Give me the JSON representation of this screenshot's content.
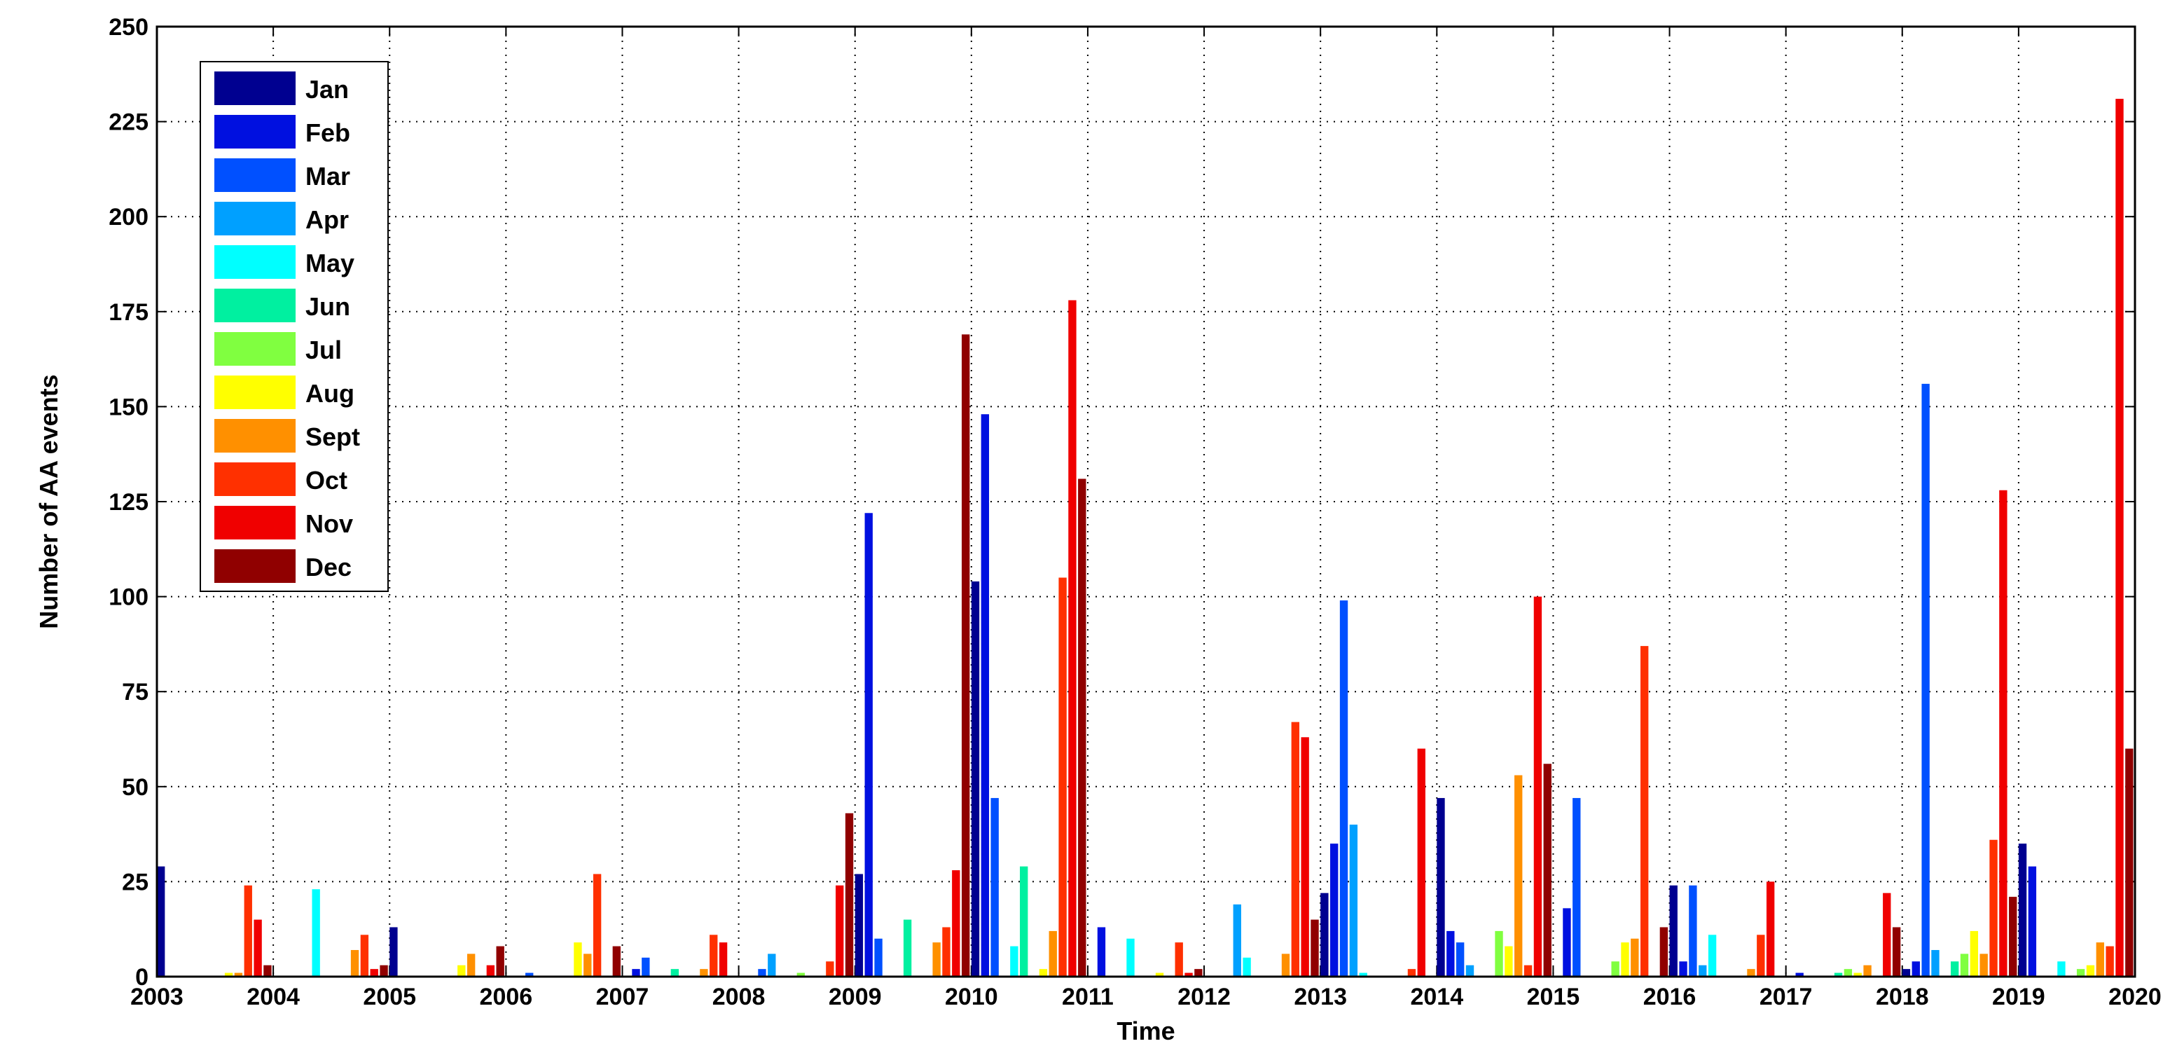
{
  "chart_data": {
    "type": "bar",
    "xlabel": "Time",
    "ylabel": "Number of AA events",
    "x": [
      2003,
      2004,
      2005,
      2006,
      2007,
      2008,
      2009,
      2010,
      2011,
      2012,
      2013,
      2014,
      2015,
      2016,
      2017,
      2018,
      2019
    ],
    "xlim": [
      2003,
      2020
    ],
    "xticks": [
      2003,
      2004,
      2005,
      2006,
      2007,
      2008,
      2009,
      2010,
      2011,
      2012,
      2013,
      2014,
      2015,
      2016,
      2017,
      2018,
      2019,
      2020
    ],
    "ylim": [
      0,
      250
    ],
    "yticks": [
      0,
      25,
      50,
      75,
      100,
      125,
      150,
      175,
      200,
      225,
      250
    ],
    "grid": true,
    "legend": "upper left",
    "series": [
      {
        "name": "Jan",
        "color": "#000090",
        "values": [
          29,
          0,
          13,
          0,
          0,
          0,
          27,
          104,
          0,
          0,
          22,
          47,
          0,
          24,
          0,
          2,
          35
        ]
      },
      {
        "name": "Feb",
        "color": "#0010e0",
        "values": [
          0,
          0,
          0,
          0,
          2,
          0,
          122,
          148,
          13,
          0,
          35,
          12,
          18,
          4,
          1,
          4,
          29
        ]
      },
      {
        "name": "Mar",
        "color": "#0050ff",
        "values": [
          0,
          0,
          0,
          1,
          5,
          2,
          10,
          47,
          0,
          0,
          99,
          9,
          47,
          24,
          0,
          156,
          0
        ]
      },
      {
        "name": "Apr",
        "color": "#00a0ff",
        "values": [
          0,
          0,
          0,
          0,
          0,
          6,
          0,
          0,
          0,
          19,
          40,
          3,
          0,
          3,
          0,
          7,
          0
        ]
      },
      {
        "name": "May",
        "color": "#00ffff",
        "values": [
          0,
          23,
          0,
          0,
          0,
          0,
          0,
          8,
          10,
          5,
          1,
          0,
          0,
          11,
          0,
          0,
          4
        ]
      },
      {
        "name": "Jun",
        "color": "#00f0a0",
        "values": [
          0,
          0,
          0,
          0,
          2,
          0,
          15,
          29,
          0,
          0,
          0,
          0,
          0,
          0,
          1,
          4,
          0
        ]
      },
      {
        "name": "Jul",
        "color": "#80ff40",
        "values": [
          0,
          0,
          0,
          0,
          0,
          1,
          0,
          0,
          0,
          0,
          0,
          12,
          4,
          0,
          2,
          6,
          2
        ]
      },
      {
        "name": "Aug",
        "color": "#ffff00",
        "values": [
          1,
          0,
          3,
          9,
          0,
          0,
          0,
          2,
          1,
          0,
          0,
          8,
          9,
          0,
          1,
          12,
          3
        ]
      },
      {
        "name": "Sept",
        "color": "#ff9000",
        "values": [
          1,
          7,
          6,
          6,
          2,
          0,
          9,
          12,
          0,
          6,
          0,
          53,
          10,
          2,
          3,
          6,
          9
        ]
      },
      {
        "name": "Oct",
        "color": "#ff3000",
        "values": [
          24,
          11,
          0,
          27,
          11,
          4,
          13,
          105,
          9,
          67,
          2,
          3,
          87,
          11,
          0,
          36,
          8
        ]
      },
      {
        "name": "Nov",
        "color": "#f00000",
        "values": [
          15,
          2,
          3,
          0,
          9,
          24,
          28,
          178,
          1,
          63,
          60,
          100,
          0,
          25,
          22,
          128,
          231
        ]
      },
      {
        "name": "Dec",
        "color": "#900000",
        "values": [
          3,
          3,
          8,
          8,
          0,
          43,
          169,
          131,
          2,
          15,
          0,
          56,
          13,
          0,
          13,
          21,
          60
        ]
      }
    ]
  }
}
